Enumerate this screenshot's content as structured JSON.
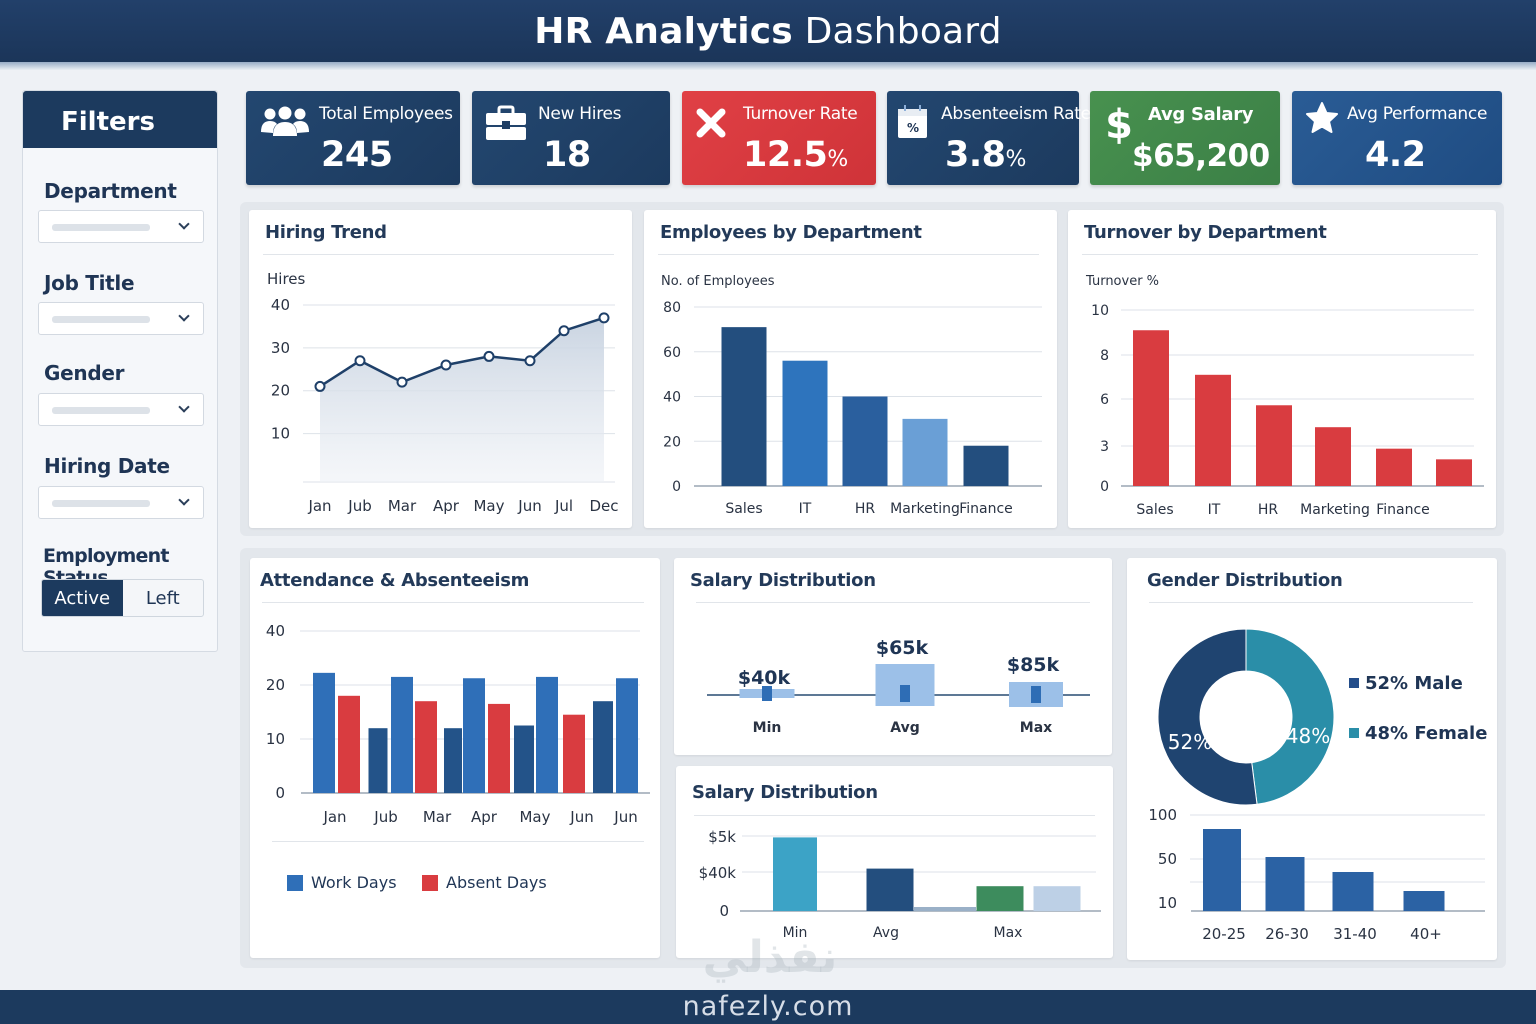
{
  "header": {
    "title_bold": "HR Analytics",
    "title_rest": "Dashboard"
  },
  "sidebar": {
    "title": "Filters",
    "filters": [
      {
        "label": "Department",
        "value": ""
      },
      {
        "label": "Job Title",
        "value": ""
      },
      {
        "label": "Gender",
        "value": ""
      },
      {
        "label": "Hiring Date",
        "value": ""
      }
    ],
    "employment_status": {
      "label": "Employment Status",
      "options": [
        "Active",
        "Left"
      ],
      "selected": "Active"
    }
  },
  "kpis": [
    {
      "label": "Total Employees",
      "value": "245",
      "unit": "",
      "icon": "users-icon",
      "color": "#1c3a5e"
    },
    {
      "label": "New Hires",
      "value": "18",
      "unit": "",
      "icon": "briefcase-icon",
      "color": "#1c3a5e"
    },
    {
      "label": "Turnover Rate",
      "value": "12.5",
      "unit": "%",
      "icon": "x-icon",
      "color": "#d8393e"
    },
    {
      "label": "Absenteeism Rate",
      "value": "3.8",
      "unit": "%",
      "icon": "calendar-percent-icon",
      "color": "#1c3a5e"
    },
    {
      "label": "Avg Salary",
      "value": "$65,200",
      "unit": "",
      "icon": "dollar-icon",
      "color": "#418849"
    },
    {
      "label": "Avg Performance",
      "value": "4.2",
      "unit": "",
      "icon": "star-icon",
      "color": "#22538a"
    }
  ],
  "panels": {
    "hiring_trend": "Hiring Trend",
    "emp_by_dept": "Employees by Department",
    "turnover_by_dept": "Turnover by Department",
    "attendance": "Attendance & Absenteeism",
    "salary_dist_1": "Salary Distribution",
    "salary_dist_2": "Salary Distribution",
    "gender_dist": "Gender Distribution"
  },
  "chart_data": [
    {
      "id": "hiring_trend",
      "type": "area",
      "title": "Hiring Trend",
      "ylabel": "Hires",
      "xlabel": "",
      "categories": [
        "Jan",
        "Jub",
        "Mar",
        "Apr",
        "May",
        "Jun",
        "Jul",
        "Dec"
      ],
      "values": [
        21,
        27,
        22,
        26,
        28,
        27,
        34,
        37
      ],
      "yticks": [
        10,
        20,
        30,
        40
      ],
      "ylim": [
        5,
        40
      ],
      "grid": true,
      "color": "#1f4069"
    },
    {
      "id": "emp_by_dept",
      "type": "bar",
      "title": "Employees by Department",
      "ylabel": "No. of Employees",
      "categories": [
        "Sales",
        "IT",
        "HR",
        "Marketing",
        "Finance"
      ],
      "values": [
        71,
        56,
        40,
        30,
        18
      ],
      "colors": [
        "#234e7e",
        "#2e74bd",
        "#2a5f9e",
        "#6a9fd6",
        "#234e7e"
      ],
      "yticks": [
        0,
        20,
        40,
        60,
        80
      ],
      "ylim": [
        0,
        80
      ],
      "grid": true
    },
    {
      "id": "turnover_by_dept",
      "type": "bar",
      "title": "Turnover by Department",
      "ylabel": "Turnover %",
      "categories": [
        "Sales",
        "IT",
        "HR",
        "Marketing",
        "Finance",
        ""
      ],
      "values": [
        9.1,
        7.1,
        5.6,
        4.2,
        2.8,
        2.0
      ],
      "yticks": [
        0,
        3,
        6,
        8,
        10
      ],
      "ylim": [
        0,
        10
      ],
      "grid": true,
      "color": "#d93c40"
    },
    {
      "id": "attendance",
      "type": "bar",
      "title": "Attendance & Absenteeism",
      "categories": [
        "Jan",
        "Jub",
        "Mar",
        "Apr",
        "May",
        "Jun",
        "Jun"
      ],
      "bars": [
        {
          "series": "Work Days",
          "value": 24.5,
          "color": "#2f6fb8"
        },
        {
          "series": "Absent Days",
          "value": 18,
          "color": "#d93c40"
        },
        {
          "series": "Work Days",
          "value": 12,
          "color": "#235389"
        },
        {
          "series": "Work Days",
          "value": 23,
          "color": "#2f6fb8"
        },
        {
          "series": "Absent Days",
          "value": 17,
          "color": "#d93c40"
        },
        {
          "series": "Work Days",
          "value": 12,
          "color": "#235389"
        },
        {
          "series": "Work Days",
          "value": 22.5,
          "color": "#2f6fb8"
        },
        {
          "series": "Absent Days",
          "value": 16.5,
          "color": "#d93c40"
        },
        {
          "series": "Work Days",
          "value": 12.5,
          "color": "#235389"
        },
        {
          "series": "Work Days",
          "value": 23,
          "color": "#2f6fb8"
        },
        {
          "series": "Absent Days",
          "value": 14.5,
          "color": "#d93c40"
        },
        {
          "series": "Work Days",
          "value": 17,
          "color": "#235389"
        },
        {
          "series": "Work Days",
          "value": 22.5,
          "color": "#2f6fb8"
        }
      ],
      "legend": [
        {
          "name": "Work Days",
          "color": "#2f6fb8"
        },
        {
          "name": "Absent Days",
          "color": "#d93c40"
        }
      ],
      "legend_position": "bottom",
      "yticks": [
        0,
        10,
        20,
        40
      ],
      "ylim": [
        0,
        40
      ],
      "grid": true
    },
    {
      "id": "salary_range",
      "type": "box",
      "title": "Salary Distribution",
      "categories": [
        "Min",
        "Avg",
        "Max"
      ],
      "values": [
        40000,
        65000,
        85000
      ],
      "labels": [
        "$40k",
        "$65k",
        "$85k"
      ]
    },
    {
      "id": "salary_bars",
      "type": "bar",
      "title": "Salary Distribution",
      "categories": [
        "Min",
        "Avg",
        "Max"
      ],
      "yticks": [
        "0",
        "$40k",
        "$5k"
      ],
      "bars": [
        {
          "category": "Min",
          "level": 0.92,
          "color": "#3ca3c6"
        },
        {
          "category": "Avg",
          "level": 0.53,
          "color": "#234e7e"
        },
        {
          "category": "",
          "level": 0.05,
          "color": "#9ab0c7"
        },
        {
          "category": "Max",
          "level": 0.31,
          "color": "#3d8c5d"
        },
        {
          "category": "",
          "level": 0.31,
          "color": "#bdd0e6"
        }
      ],
      "grid": true
    },
    {
      "id": "gender",
      "type": "pie",
      "title": "Gender Distribution",
      "slices": [
        {
          "name": "Male",
          "value": 52,
          "label": "52%",
          "legend": "52% Male",
          "color": "#1f4470"
        },
        {
          "name": "Female",
          "value": 48,
          "label": "48%",
          "legend": "48% Female",
          "color": "#2a8ea8"
        }
      ],
      "donut": true,
      "legend_position": "right"
    },
    {
      "id": "age_groups",
      "type": "bar",
      "title": "",
      "categories": [
        "20-25",
        "26-30",
        "31-40",
        "40+"
      ],
      "values": [
        85,
        55,
        40,
        20
      ],
      "yticks": [
        10,
        50,
        100
      ],
      "grid": true,
      "color": "#2b62a4"
    }
  ],
  "footer": {
    "text": "nafezly.com",
    "watermark": "نفذلي"
  }
}
